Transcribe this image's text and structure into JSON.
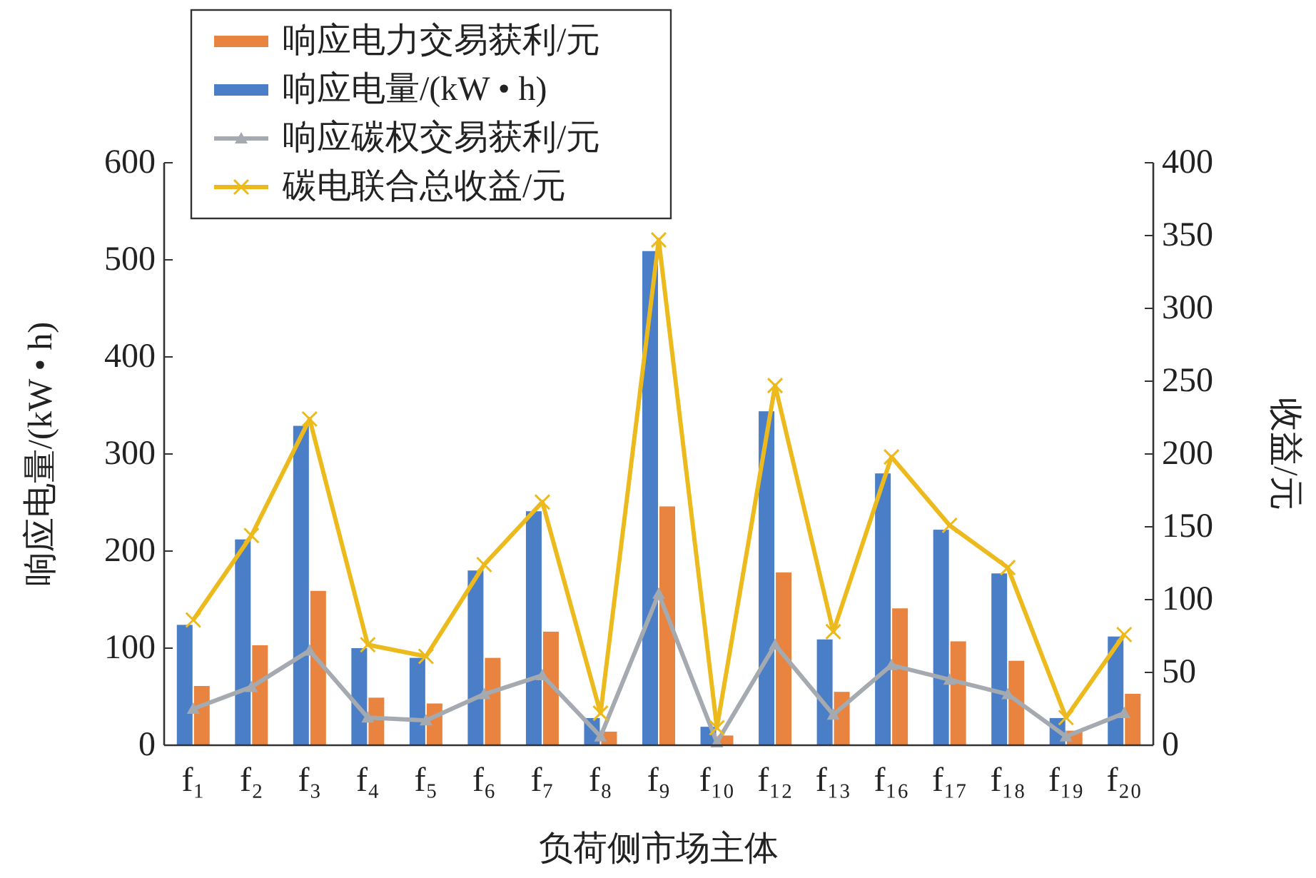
{
  "chart_data": {
    "type": "bar",
    "xlabel": "负荷侧市场主体",
    "ylabel": "响应电量/(kW • h)",
    "y2label": "收益/元",
    "categories": [
      "f₁",
      "f₂",
      "f₃",
      "f₄",
      "f₅",
      "f₆",
      "f₇",
      "f₈",
      "f₉",
      "f₁₀",
      "f₁₂",
      "f₁₃",
      "f₁₆",
      "f₁₇",
      "f₁₈",
      "f₁₉",
      "f₂₀"
    ],
    "ylim": [
      0,
      600
    ],
    "yticks": [
      0,
      100,
      200,
      300,
      400,
      500,
      600
    ],
    "y2lim": [
      0,
      400
    ],
    "y2ticks": [
      0,
      50,
      100,
      150,
      200,
      250,
      300,
      350,
      400
    ],
    "legend": "top left",
    "grid": false,
    "series": [
      {
        "name": "响应电力交易获利/元",
        "color": "#e8843f",
        "values": [
          61,
          103,
          159,
          49,
          43,
          90,
          117,
          14,
          246,
          10,
          178,
          55,
          141,
          107,
          87,
          15,
          53
        ]
      },
      {
        "name": "响应电量/(kW • h)",
        "color": "#4a7fc7",
        "values": [
          124,
          212,
          329,
          100,
          90,
          180,
          241,
          28,
          509,
          19,
          344,
          109,
          280,
          222,
          177,
          28,
          112
        ]
      },
      {
        "name": "响应碳权交易获利/元",
        "type": "line",
        "axis": "y2",
        "marker": "triangle",
        "color": "#a5a9b0",
        "values": [
          25,
          40,
          65,
          19,
          17,
          35,
          48,
          6,
          104,
          2,
          69,
          21,
          55,
          45,
          35,
          6,
          22
        ]
      },
      {
        "name": "碳电联合总收益/元",
        "type": "line",
        "axis": "y2",
        "marker": "cross",
        "color": "#ecba1c",
        "values": [
          86,
          144,
          224,
          69,
          61,
          124,
          167,
          22,
          347,
          12,
          247,
          78,
          198,
          151,
          122,
          19,
          76
        ]
      }
    ]
  }
}
